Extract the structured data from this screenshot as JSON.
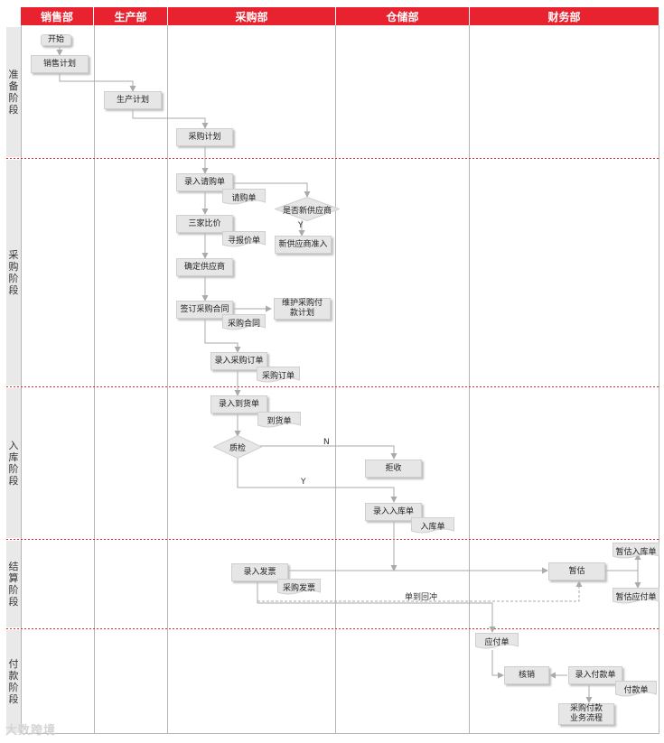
{
  "departments": [
    "销售部",
    "生产部",
    "采购部",
    "仓储部",
    "财务部"
  ],
  "phases": [
    "准备阶段",
    "采购阶段",
    "入库阶段",
    "结算阶段",
    "付款阶段"
  ],
  "nodes": {
    "start": "开始",
    "sales_plan": "销售计划",
    "production_plan": "生产计划",
    "purchase_plan": "采购计划",
    "enter_requisition": "录入请购单",
    "requisition_doc": "请购单",
    "is_new_supplier": "是否新供应商",
    "new_supplier_access": "新供应商准入",
    "three_quotes": "三家比价",
    "quotation_doc": "寻报价单",
    "confirm_supplier": "确定供应商",
    "sign_contract": "签订采购合同",
    "contract_doc": "采购合同",
    "maintain_payment_plan": "维护采购付款计划",
    "enter_purchase_order": "录入采购订单",
    "purchase_order_doc": "采购订单",
    "enter_arrival": "录入到货单",
    "arrival_doc": "到货单",
    "quality_check": "质检",
    "reject": "拒收",
    "enter_warehousing": "录入入库单",
    "warehousing_doc": "入库单",
    "enter_invoice": "录入发票",
    "invoice_doc": "采购发票",
    "estimate": "暂估",
    "est_warehousing_doc": "暂估入库单",
    "est_payable_doc": "暂估应付单",
    "reversal": "单到回冲",
    "payable_doc": "应付单",
    "write_off": "核销",
    "enter_payment": "录入付款单",
    "payment_doc": "付款单",
    "payment_process": "采购付款业务流程"
  },
  "edge_labels": {
    "yes": "Y",
    "no": "N"
  },
  "watermark": "大数跨境",
  "colors": {
    "header": "#e8232f",
    "phase_divider": "#e8232f",
    "box_fill": "#e6e6e6",
    "line": "#aaaaaa"
  }
}
